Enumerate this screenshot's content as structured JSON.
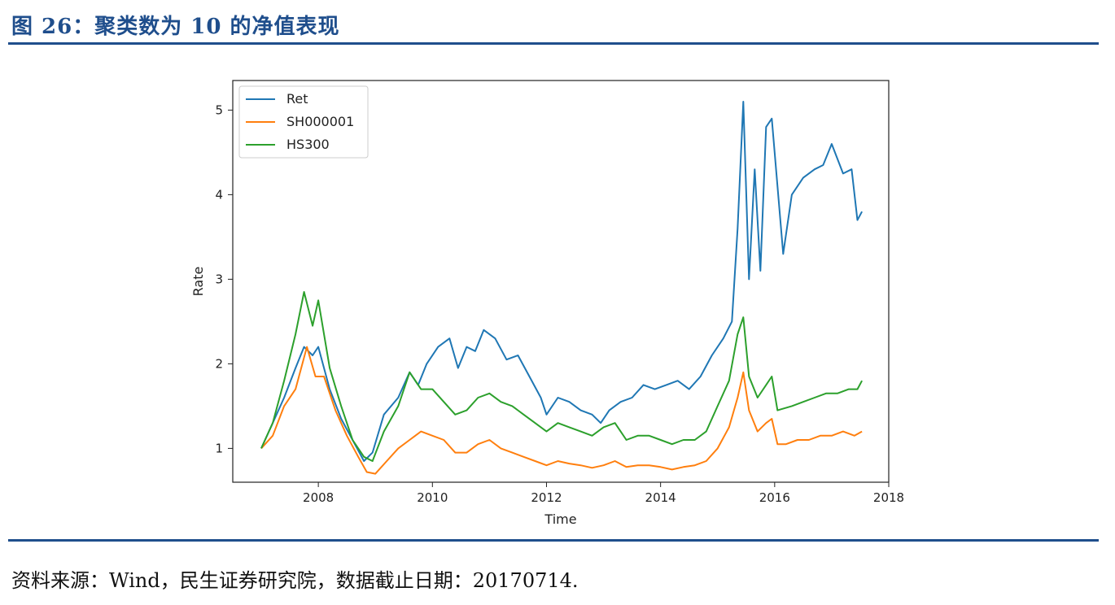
{
  "figure": {
    "title": "图 26：聚类数为 10 的净值表现",
    "source": "资料来源：Wind，民生证券研究院，数据截止日期：20170714."
  },
  "colors": {
    "Ret": "#1f77b4",
    "SH000001": "#ff7f0e",
    "HS300": "#2ca02c",
    "accent": "#1f4e8c"
  },
  "chart_data": {
    "type": "line",
    "xlabel": "Time",
    "ylabel": "Rate",
    "xlim": [
      2006.5,
      2018.0
    ],
    "ylim": [
      0.6,
      5.35
    ],
    "xticks": [
      2008,
      2010,
      2012,
      2014,
      2016,
      2018
    ],
    "yticks": [
      1,
      2,
      3,
      4,
      5
    ],
    "legend_position": "top-left",
    "grid": false,
    "series": [
      {
        "name": "Ret",
        "x": [
          2007.0,
          2007.2,
          2007.4,
          2007.6,
          2007.75,
          2007.9,
          2008.0,
          2008.2,
          2008.4,
          2008.6,
          2008.8,
          2008.95,
          2009.15,
          2009.4,
          2009.6,
          2009.75,
          2009.9,
          2010.1,
          2010.3,
          2010.45,
          2010.6,
          2010.75,
          2010.9,
          2011.1,
          2011.3,
          2011.5,
          2011.7,
          2011.9,
          2012.0,
          2012.2,
          2012.4,
          2012.6,
          2012.8,
          2012.95,
          2013.1,
          2013.3,
          2013.5,
          2013.7,
          2013.9,
          2014.1,
          2014.3,
          2014.5,
          2014.7,
          2014.9,
          2015.1,
          2015.25,
          2015.35,
          2015.45,
          2015.55,
          2015.65,
          2015.75,
          2015.85,
          2015.95,
          2016.05,
          2016.15,
          2016.3,
          2016.5,
          2016.7,
          2016.85,
          2017.0,
          2017.2,
          2017.35,
          2017.45,
          2017.53
        ],
        "y": [
          1.0,
          1.3,
          1.6,
          1.95,
          2.2,
          2.1,
          2.2,
          1.7,
          1.35,
          1.1,
          0.85,
          0.95,
          1.4,
          1.6,
          1.9,
          1.75,
          2.0,
          2.2,
          2.3,
          1.95,
          2.2,
          2.15,
          2.4,
          2.3,
          2.05,
          2.1,
          1.85,
          1.6,
          1.4,
          1.6,
          1.55,
          1.45,
          1.4,
          1.3,
          1.45,
          1.55,
          1.6,
          1.75,
          1.7,
          1.75,
          1.8,
          1.7,
          1.85,
          2.1,
          2.3,
          2.5,
          3.6,
          5.1,
          3.0,
          4.3,
          3.1,
          4.8,
          4.9,
          4.1,
          3.3,
          4.0,
          4.2,
          4.3,
          4.35,
          4.6,
          4.25,
          4.3,
          3.7,
          3.8
        ]
      },
      {
        "name": "SH000001",
        "x": [
          2007.0,
          2007.2,
          2007.4,
          2007.6,
          2007.8,
          2007.95,
          2008.1,
          2008.3,
          2008.5,
          2008.7,
          2008.85,
          2009.0,
          2009.2,
          2009.4,
          2009.6,
          2009.8,
          2010.0,
          2010.2,
          2010.4,
          2010.6,
          2010.8,
          2011.0,
          2011.2,
          2011.4,
          2011.6,
          2011.8,
          2012.0,
          2012.2,
          2012.4,
          2012.6,
          2012.8,
          2013.0,
          2013.2,
          2013.4,
          2013.6,
          2013.8,
          2014.0,
          2014.2,
          2014.4,
          2014.6,
          2014.8,
          2015.0,
          2015.2,
          2015.35,
          2015.45,
          2015.55,
          2015.7,
          2015.85,
          2015.95,
          2016.05,
          2016.2,
          2016.4,
          2016.6,
          2016.8,
          2017.0,
          2017.2,
          2017.4,
          2017.53
        ],
        "y": [
          1.0,
          1.15,
          1.5,
          1.7,
          2.2,
          1.85,
          1.85,
          1.45,
          1.15,
          0.9,
          0.72,
          0.7,
          0.85,
          1.0,
          1.1,
          1.2,
          1.15,
          1.1,
          0.95,
          0.95,
          1.05,
          1.1,
          1.0,
          0.95,
          0.9,
          0.85,
          0.8,
          0.85,
          0.82,
          0.8,
          0.77,
          0.8,
          0.85,
          0.78,
          0.8,
          0.8,
          0.78,
          0.75,
          0.78,
          0.8,
          0.85,
          1.0,
          1.25,
          1.6,
          1.9,
          1.45,
          1.2,
          1.3,
          1.35,
          1.05,
          1.05,
          1.1,
          1.1,
          1.15,
          1.15,
          1.2,
          1.15,
          1.2
        ]
      },
      {
        "name": "HS300",
        "x": [
          2007.0,
          2007.2,
          2007.4,
          2007.6,
          2007.75,
          2007.9,
          2008.0,
          2008.2,
          2008.4,
          2008.6,
          2008.8,
          2008.95,
          2009.15,
          2009.4,
          2009.6,
          2009.8,
          2010.0,
          2010.2,
          2010.4,
          2010.6,
          2010.8,
          2011.0,
          2011.2,
          2011.4,
          2011.6,
          2011.8,
          2012.0,
          2012.2,
          2012.4,
          2012.6,
          2012.8,
          2013.0,
          2013.2,
          2013.4,
          2013.6,
          2013.8,
          2014.0,
          2014.2,
          2014.4,
          2014.6,
          2014.8,
          2015.0,
          2015.2,
          2015.35,
          2015.45,
          2015.55,
          2015.7,
          2015.85,
          2015.95,
          2016.05,
          2016.3,
          2016.5,
          2016.7,
          2016.9,
          2017.1,
          2017.3,
          2017.45,
          2017.53
        ],
        "y": [
          1.0,
          1.3,
          1.8,
          2.35,
          2.85,
          2.45,
          2.75,
          1.95,
          1.5,
          1.1,
          0.9,
          0.85,
          1.2,
          1.5,
          1.9,
          1.7,
          1.7,
          1.55,
          1.4,
          1.45,
          1.6,
          1.65,
          1.55,
          1.5,
          1.4,
          1.3,
          1.2,
          1.3,
          1.25,
          1.2,
          1.15,
          1.25,
          1.3,
          1.1,
          1.15,
          1.15,
          1.1,
          1.05,
          1.1,
          1.1,
          1.2,
          1.5,
          1.8,
          2.35,
          2.55,
          1.85,
          1.6,
          1.75,
          1.85,
          1.45,
          1.5,
          1.55,
          1.6,
          1.65,
          1.65,
          1.7,
          1.7,
          1.8
        ]
      }
    ]
  }
}
